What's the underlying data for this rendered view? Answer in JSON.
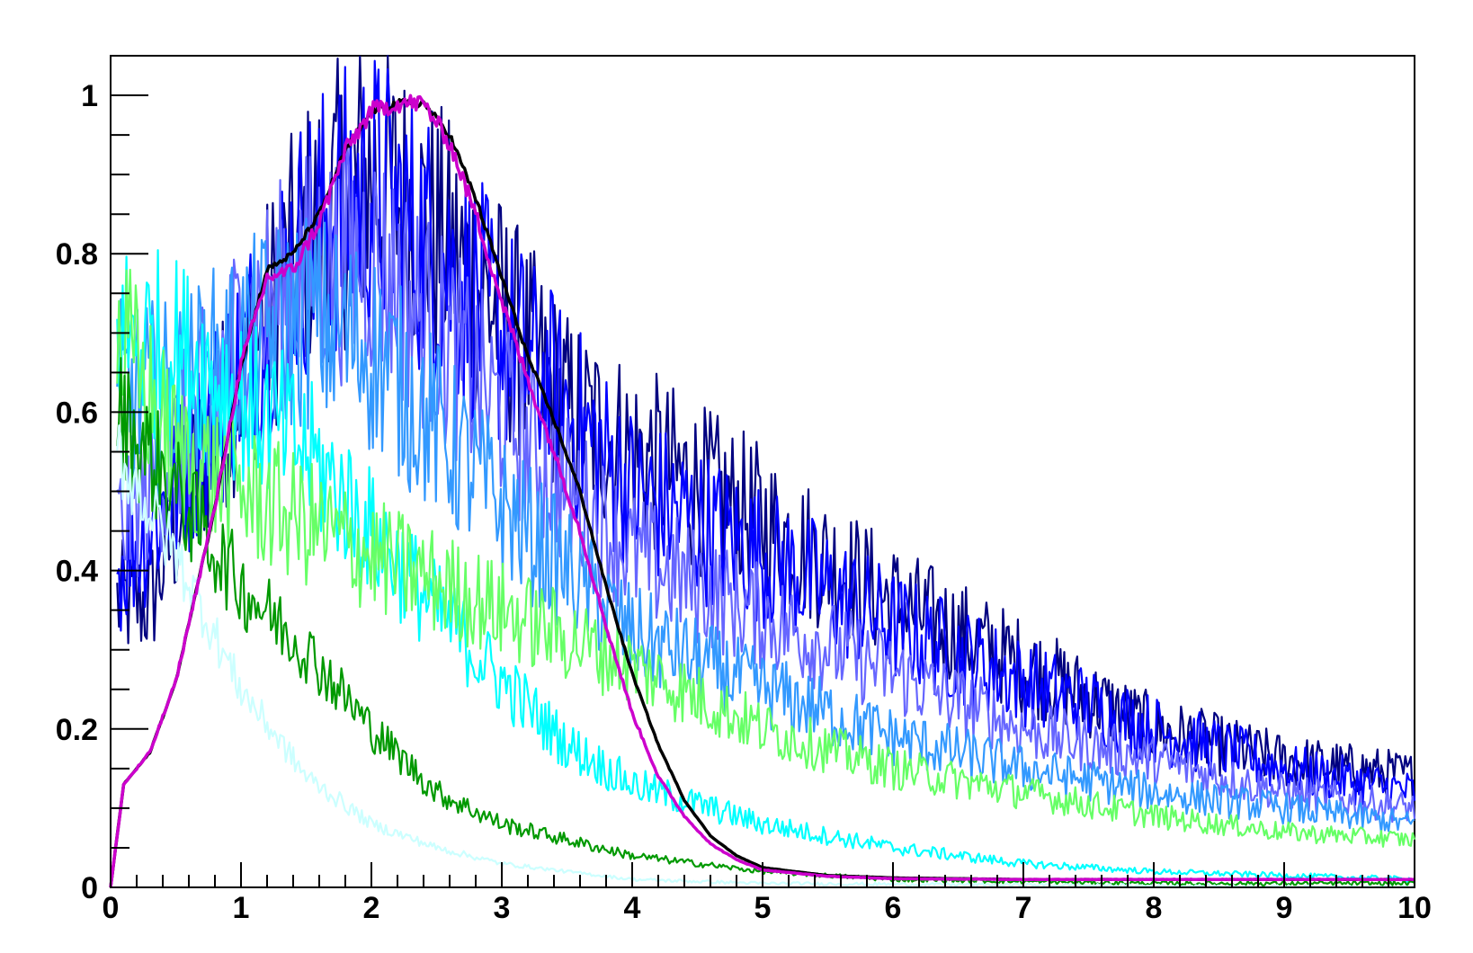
{
  "chart_data": {
    "type": "line",
    "title": "",
    "xlabel": "",
    "ylabel": "",
    "xlim": [
      0,
      10
    ],
    "ylim": [
      0,
      1.05
    ],
    "grid": false,
    "legend": "none",
    "x_ticks": [
      0,
      1,
      2,
      3,
      4,
      5,
      6,
      7,
      8,
      9,
      10
    ],
    "x_tick_labels": [
      "0",
      "1",
      "2",
      "3",
      "4",
      "5",
      "6",
      "7",
      "8",
      "9",
      "10"
    ],
    "y_ticks": [
      0,
      0.2,
      0.4,
      0.6,
      0.8,
      1
    ],
    "y_tick_labels": [
      "0",
      "0.2",
      "0.4",
      "0.6",
      "0.8",
      "1"
    ],
    "series": [
      {
        "color": "#000080",
        "noise": 0.22,
        "x": [
          0.05,
          0.3,
          0.6,
          1.0,
          1.5,
          2.0,
          2.5,
          3.0,
          3.5,
          4.0,
          5.0,
          6.0,
          7.0,
          8.0,
          9.0,
          10.0
        ],
        "y": [
          0.36,
          0.36,
          0.5,
          0.65,
          0.82,
          0.9,
          0.82,
          0.72,
          0.6,
          0.55,
          0.46,
          0.36,
          0.28,
          0.2,
          0.16,
          0.14
        ]
      },
      {
        "color": "#0000ff",
        "noise": 0.22,
        "x": [
          0.05,
          0.5,
          1.0,
          1.5,
          2.0,
          2.5,
          3.0,
          3.5,
          4.0,
          5.0,
          6.0,
          7.0,
          8.0,
          9.0,
          10.0
        ],
        "y": [
          0.4,
          0.5,
          0.66,
          0.82,
          0.88,
          0.8,
          0.7,
          0.6,
          0.5,
          0.42,
          0.33,
          0.26,
          0.2,
          0.15,
          0.12
        ]
      },
      {
        "color": "#6666ff",
        "noise": 0.2,
        "x": [
          0.05,
          0.5,
          1.0,
          1.5,
          2.0,
          2.5,
          3.0,
          3.5,
          4.0,
          5.0,
          6.0,
          7.0,
          8.0,
          9.0,
          10.0
        ],
        "y": [
          0.45,
          0.55,
          0.7,
          0.78,
          0.8,
          0.7,
          0.6,
          0.5,
          0.42,
          0.34,
          0.27,
          0.2,
          0.16,
          0.12,
          0.1
        ]
      },
      {
        "color": "#3399ff",
        "noise": 0.2,
        "x": [
          0.05,
          0.5,
          1.0,
          1.5,
          2.0,
          2.5,
          3.0,
          3.5,
          4.0,
          5.0,
          6.0,
          7.0,
          8.0,
          9.0,
          10.0
        ],
        "y": [
          0.62,
          0.62,
          0.68,
          0.72,
          0.68,
          0.58,
          0.48,
          0.4,
          0.32,
          0.25,
          0.19,
          0.15,
          0.12,
          0.1,
          0.08
        ]
      },
      {
        "color": "#00ffff",
        "noise": 0.18,
        "x": [
          0.05,
          0.5,
          1.0,
          1.5,
          2.0,
          2.5,
          3.0,
          3.5,
          4.0,
          5.0,
          6.0,
          7.0,
          8.0,
          10.0
        ],
        "y": [
          0.7,
          0.68,
          0.62,
          0.55,
          0.45,
          0.35,
          0.26,
          0.18,
          0.13,
          0.08,
          0.05,
          0.03,
          0.02,
          0.01
        ]
      },
      {
        "color": "#66ff66",
        "noise": 0.18,
        "x": [
          0.05,
          0.5,
          1.0,
          2.0,
          3.0,
          4.0,
          5.0,
          6.0,
          7.0,
          8.0,
          9.0,
          10.0
        ],
        "y": [
          0.7,
          0.55,
          0.5,
          0.42,
          0.35,
          0.28,
          0.2,
          0.15,
          0.12,
          0.09,
          0.07,
          0.06
        ]
      },
      {
        "color": "#009900",
        "noise": 0.14,
        "x": [
          0.05,
          0.5,
          1.0,
          1.5,
          2.0,
          2.5,
          3.0,
          3.5,
          4.0,
          5.0,
          6.0,
          8.0,
          10.0
        ],
        "y": [
          0.6,
          0.5,
          0.38,
          0.3,
          0.2,
          0.12,
          0.08,
          0.06,
          0.04,
          0.02,
          0.01,
          0.005,
          0.005
        ]
      },
      {
        "color": "#ccffff",
        "noise": 0.1,
        "x": [
          0.05,
          0.5,
          1.0,
          1.5,
          2.0,
          2.5,
          3.0,
          4.0,
          5.0,
          10.0
        ],
        "y": [
          0.55,
          0.42,
          0.25,
          0.14,
          0.08,
          0.05,
          0.03,
          0.01,
          0.005,
          0.0
        ]
      },
      {
        "color": "#000000",
        "noise": 0.005,
        "x": [
          0.0,
          0.1,
          0.3,
          0.5,
          0.8,
          1.0,
          1.2,
          1.4,
          1.6,
          1.8,
          2.0,
          2.2,
          2.4,
          2.6,
          2.8,
          3.0,
          3.2,
          3.4,
          3.6,
          3.8,
          4.0,
          4.2,
          4.4,
          4.6,
          4.8,
          5.0,
          5.5,
          6.0,
          7.0,
          8.0,
          10.0
        ],
        "y": [
          0.0,
          0.13,
          0.17,
          0.26,
          0.48,
          0.66,
          0.78,
          0.8,
          0.85,
          0.93,
          0.98,
          0.99,
          0.99,
          0.95,
          0.87,
          0.77,
          0.67,
          0.59,
          0.5,
          0.38,
          0.27,
          0.18,
          0.11,
          0.065,
          0.04,
          0.025,
          0.015,
          0.012,
          0.01,
          0.01,
          0.01
        ]
      },
      {
        "color": "#cc00cc",
        "noise": 0.012,
        "x": [
          0.0,
          0.1,
          0.3,
          0.5,
          0.8,
          1.0,
          1.2,
          1.4,
          1.6,
          1.8,
          2.0,
          2.2,
          2.4,
          2.6,
          2.8,
          3.0,
          3.2,
          3.4,
          3.6,
          3.8,
          4.0,
          4.2,
          4.4,
          4.6,
          4.8,
          5.0,
          5.5,
          6.0,
          7.0,
          8.0,
          10.0
        ],
        "y": [
          0.0,
          0.13,
          0.17,
          0.26,
          0.48,
          0.66,
          0.77,
          0.78,
          0.84,
          0.93,
          0.98,
          0.99,
          0.99,
          0.94,
          0.85,
          0.74,
          0.64,
          0.55,
          0.45,
          0.33,
          0.22,
          0.14,
          0.09,
          0.055,
          0.035,
          0.022,
          0.014,
          0.011,
          0.01,
          0.01,
          0.01
        ]
      }
    ]
  }
}
